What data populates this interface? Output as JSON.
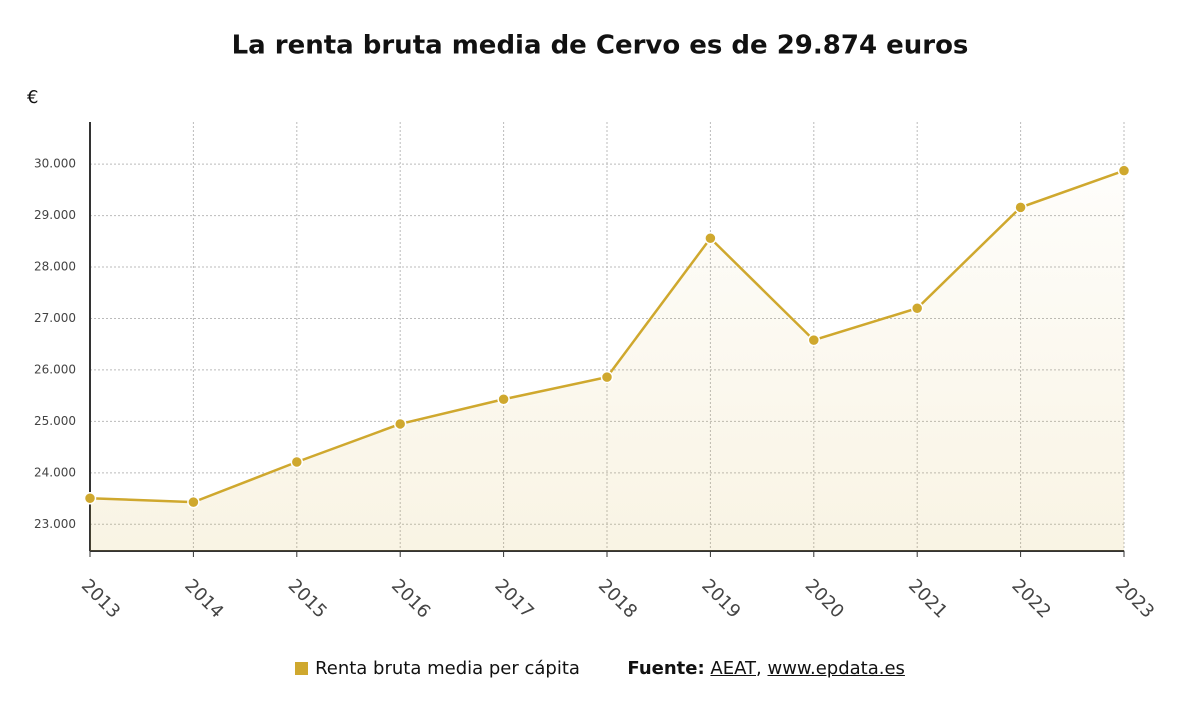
{
  "chart_data": {
    "type": "line",
    "title": "La renta bruta media de Cervo es de 29.874 euros",
    "y_unit": "€",
    "categories": [
      "2013",
      "2014",
      "2015",
      "2016",
      "2017",
      "2018",
      "2019",
      "2020",
      "2021",
      "2022",
      "2023"
    ],
    "series": [
      {
        "name": "Renta bruta media per cápita",
        "color": "#cfa82e",
        "values": [
          23506,
          23430,
          24210,
          24950,
          25430,
          25860,
          28560,
          26580,
          27200,
          29160,
          29874
        ]
      }
    ],
    "ylim": [
      22480,
      30820
    ],
    "yticks": [
      {
        "value": 23000,
        "label": "23.000"
      },
      {
        "value": 24000,
        "label": "24.000"
      },
      {
        "value": 25000,
        "label": "25.000"
      },
      {
        "value": 26000,
        "label": "26.000"
      },
      {
        "value": 27000,
        "label": "27.000"
      },
      {
        "value": 28000,
        "label": "28.000"
      },
      {
        "value": 29000,
        "label": "29.000"
      },
      {
        "value": 30000,
        "label": "30.000"
      }
    ],
    "grid": true,
    "source": {
      "label": "Fuente:",
      "items": [
        "AEAT",
        "www.epdata.es"
      ],
      "separator": ","
    }
  }
}
